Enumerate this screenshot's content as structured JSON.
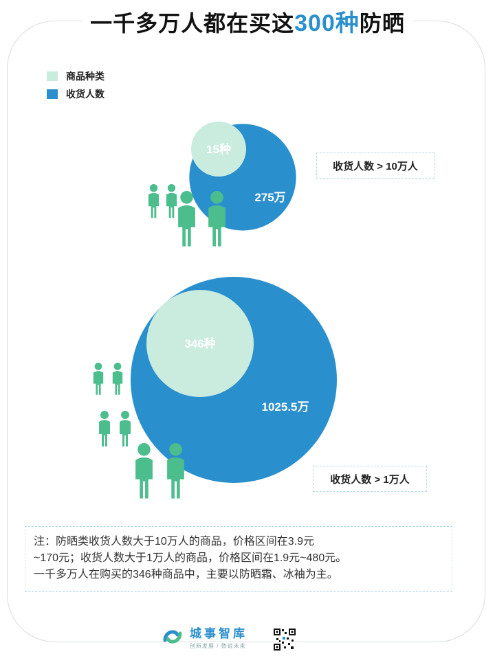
{
  "title": {
    "prefix": "一千多万人都在买这",
    "highlight": "300种",
    "suffix": "防晒"
  },
  "legend": [
    {
      "label": "商品种类",
      "color": "#c9ecdf"
    },
    {
      "label": "收货人数",
      "color": "#2a8fcd"
    }
  ],
  "colors": {
    "outer": "#2a8fcd",
    "inner": "#c9ecdf",
    "people": "#4cbd8c"
  },
  "chart_data": [
    {
      "type": "bubble",
      "group_label": "收货人数 > 10万人",
      "categories": [
        "商品种类",
        "收货人数"
      ],
      "products": 15,
      "products_label": "15种",
      "buyers_wan": 275,
      "buyers_label": "275万"
    },
    {
      "type": "bubble",
      "group_label": "收货人数 > 1万人",
      "categories": [
        "商品种类",
        "收货人数"
      ],
      "products": 346,
      "products_label": "346种",
      "buyers_wan": 1025.5,
      "buyers_label": "1025.5万"
    }
  ],
  "note": {
    "line1": "注：防晒类收货人数大于10万人的商品，价格区间在3.9元",
    "line2": "~170元；收货人数大于1万人的商品，价格区间在1.9元~480元。",
    "line3": "一千多万人在购买的346种商品中，主要以防晒霜、冰袖为主。"
  },
  "footer": {
    "brand": "城事智库",
    "slogan": "创新发展 / 数说未来"
  }
}
